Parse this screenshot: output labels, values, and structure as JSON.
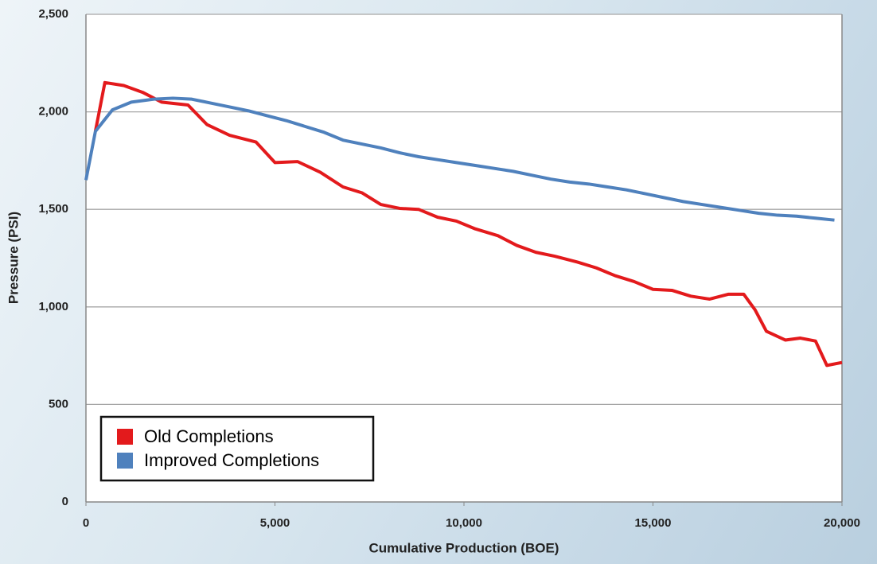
{
  "chart_data": {
    "type": "line",
    "xlabel": "Cumulative Production (BOE)",
    "ylabel": "Pressure (PSI)",
    "xlim": [
      0,
      20000
    ],
    "ylim": [
      0,
      2500
    ],
    "xticks": [
      0,
      {
        "value": 5000,
        "label": "5,000"
      },
      {
        "value": 10000,
        "label": "10,000"
      },
      {
        "value": 15000,
        "label": "15,000"
      },
      {
        "value": 20000,
        "label": "20,000"
      }
    ],
    "yticks": [
      0,
      500,
      {
        "value": 1000,
        "label": "1,000"
      },
      {
        "value": 1500,
        "label": "1,500"
      },
      {
        "value": 2000,
        "label": "2,000"
      },
      {
        "value": 2500,
        "label": "2,500"
      }
    ],
    "grid": true,
    "legend": "lower left",
    "series": [
      {
        "name": "Old Completions",
        "color": "#e31a1c",
        "x": [
          250,
          500,
          1000,
          1500,
          2000,
          2700,
          3200,
          3800,
          4500,
          5000,
          5600,
          6200,
          6800,
          7300,
          7800,
          8300,
          8800,
          9300,
          9800,
          10300,
          10900,
          11400,
          11900,
          12400,
          13000,
          13500,
          14000,
          14500,
          15000,
          15500,
          16000,
          16500,
          17000,
          17400,
          17700,
          18000,
          18500,
          18900,
          19300,
          19600,
          20000
        ],
        "values": [
          1900,
          2150,
          2135,
          2100,
          2050,
          2035,
          1935,
          1880,
          1845,
          1740,
          1745,
          1690,
          1615,
          1585,
          1525,
          1505,
          1500,
          1460,
          1440,
          1400,
          1365,
          1315,
          1280,
          1260,
          1230,
          1200,
          1160,
          1130,
          1090,
          1085,
          1055,
          1040,
          1065,
          1065,
          985,
          875,
          830,
          840,
          825,
          700,
          715
        ]
      },
      {
        "name": "Improved Completions",
        "color": "#4f81bd",
        "x": [
          0,
          250,
          700,
          1200,
          1800,
          2300,
          2800,
          3300,
          3800,
          4300,
          4800,
          5300,
          5800,
          6300,
          6800,
          7300,
          7800,
          8300,
          8800,
          9300,
          9800,
          10300,
          10800,
          11300,
          11800,
          12300,
          12800,
          13300,
          13800,
          14300,
          14800,
          15300,
          15800,
          16300,
          16800,
          17300,
          17800,
          18300,
          18800,
          19300,
          19800
        ],
        "values": [
          1650,
          1900,
          2010,
          2050,
          2065,
          2070,
          2065,
          2045,
          2025,
          2005,
          1980,
          1955,
          1925,
          1895,
          1855,
          1835,
          1815,
          1790,
          1770,
          1755,
          1740,
          1725,
          1710,
          1695,
          1675,
          1655,
          1640,
          1630,
          1615,
          1600,
          1580,
          1560,
          1540,
          1525,
          1510,
          1495,
          1480,
          1470,
          1465,
          1455,
          1445
        ]
      }
    ]
  }
}
